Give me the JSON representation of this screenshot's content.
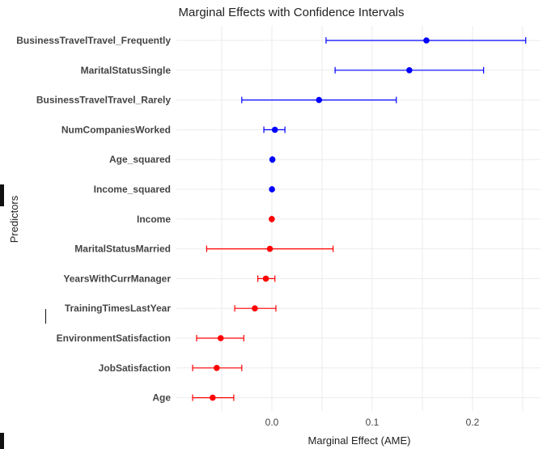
{
  "chart_data": {
    "type": "forest",
    "title": "Marginal Effects with Confidence Intervals",
    "xlabel": "Marginal Effect (AME)",
    "ylabel": "Predictors",
    "xlim": [
      -0.105,
      0.27
    ],
    "xticks": [
      0.0,
      0.1,
      0.2
    ],
    "xtick_labels": [
      "0.0",
      "0.1",
      "0.2"
    ],
    "grid": true,
    "colors": {
      "positive": "#0000ff",
      "negative": "#ff0000"
    },
    "predictors": [
      {
        "label": "BusinessTravelTravel_Frequently",
        "estimate": 0.154,
        "lower": 0.054,
        "upper": 0.253,
        "sign": "positive"
      },
      {
        "label": "MaritalStatusSingle",
        "estimate": 0.137,
        "lower": 0.063,
        "upper": 0.211,
        "sign": "positive"
      },
      {
        "label": "BusinessTravelTravel_Rarely",
        "estimate": 0.047,
        "lower": -0.03,
        "upper": 0.124,
        "sign": "positive"
      },
      {
        "label": "NumCompaniesWorked",
        "estimate": 0.003,
        "lower": -0.008,
        "upper": 0.013,
        "sign": "positive"
      },
      {
        "label": "Age_squared",
        "estimate": 0.0005,
        "lower": 0.0,
        "upper": 0.001,
        "sign": "positive"
      },
      {
        "label": "Income_squared",
        "estimate": 0.0001,
        "lower": 0.0,
        "upper": 0.0002,
        "sign": "positive"
      },
      {
        "label": "Income",
        "estimate": -0.0001,
        "lower": -0.0002,
        "upper": 0.0,
        "sign": "negative"
      },
      {
        "label": "MaritalStatusMarried",
        "estimate": -0.002,
        "lower": -0.065,
        "upper": 0.061,
        "sign": "negative"
      },
      {
        "label": "YearsWithCurrManager",
        "estimate": -0.006,
        "lower": -0.014,
        "upper": 0.003,
        "sign": "negative"
      },
      {
        "label": "TrainingTimesLastYear",
        "estimate": -0.017,
        "lower": -0.037,
        "upper": 0.004,
        "sign": "negative"
      },
      {
        "label": "EnvironmentSatisfaction",
        "estimate": -0.051,
        "lower": -0.075,
        "upper": -0.028,
        "sign": "negative"
      },
      {
        "label": "JobSatisfaction",
        "estimate": -0.055,
        "lower": -0.079,
        "upper": -0.03,
        "sign": "negative"
      },
      {
        "label": "Age",
        "estimate": -0.059,
        "lower": -0.079,
        "upper": -0.038,
        "sign": "negative"
      }
    ]
  }
}
